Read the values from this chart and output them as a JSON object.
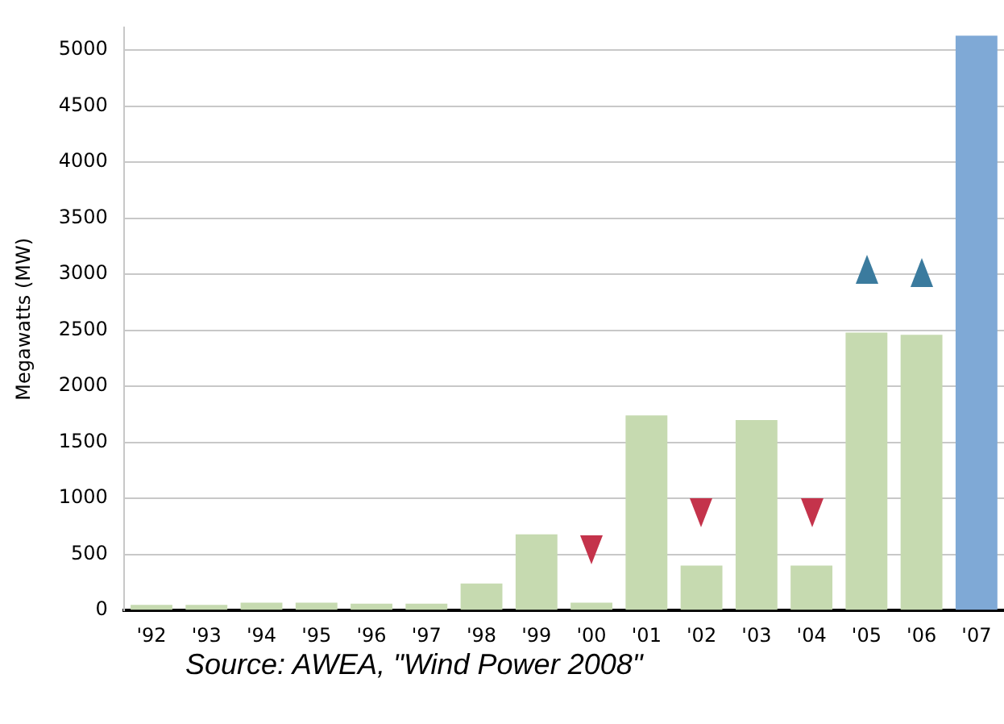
{
  "chart_data": {
    "type": "bar",
    "ylabel": "Megawatts (MW)",
    "categories": [
      "'92",
      "'93",
      "'94",
      "'95",
      "'96",
      "'97",
      "'98",
      "'99",
      "'00",
      "'01",
      "'02",
      "'03",
      "'04",
      "'05",
      "'06",
      "'07"
    ],
    "values": [
      50,
      50,
      70,
      70,
      60,
      60,
      240,
      680,
      70,
      1740,
      400,
      1700,
      400,
      2480,
      2460,
      5130
    ],
    "colors": [
      "#c6dab0",
      "#c6dab0",
      "#c6dab0",
      "#c6dab0",
      "#c6dab0",
      "#c6dab0",
      "#c6dab0",
      "#c6dab0",
      "#c6dab0",
      "#c6dab0",
      "#c6dab0",
      "#c6dab0",
      "#c6dab0",
      "#c6dab0",
      "#c6dab0",
      "#7fa9d6"
    ],
    "ylim": [
      0,
      5200
    ],
    "yticks": [
      0,
      500,
      1000,
      1500,
      2000,
      2500,
      3000,
      3500,
      4000,
      4500,
      5000
    ],
    "grid": "y",
    "annotations": [
      "Source: AWEA, \"Wind Power 2008\""
    ]
  }
}
